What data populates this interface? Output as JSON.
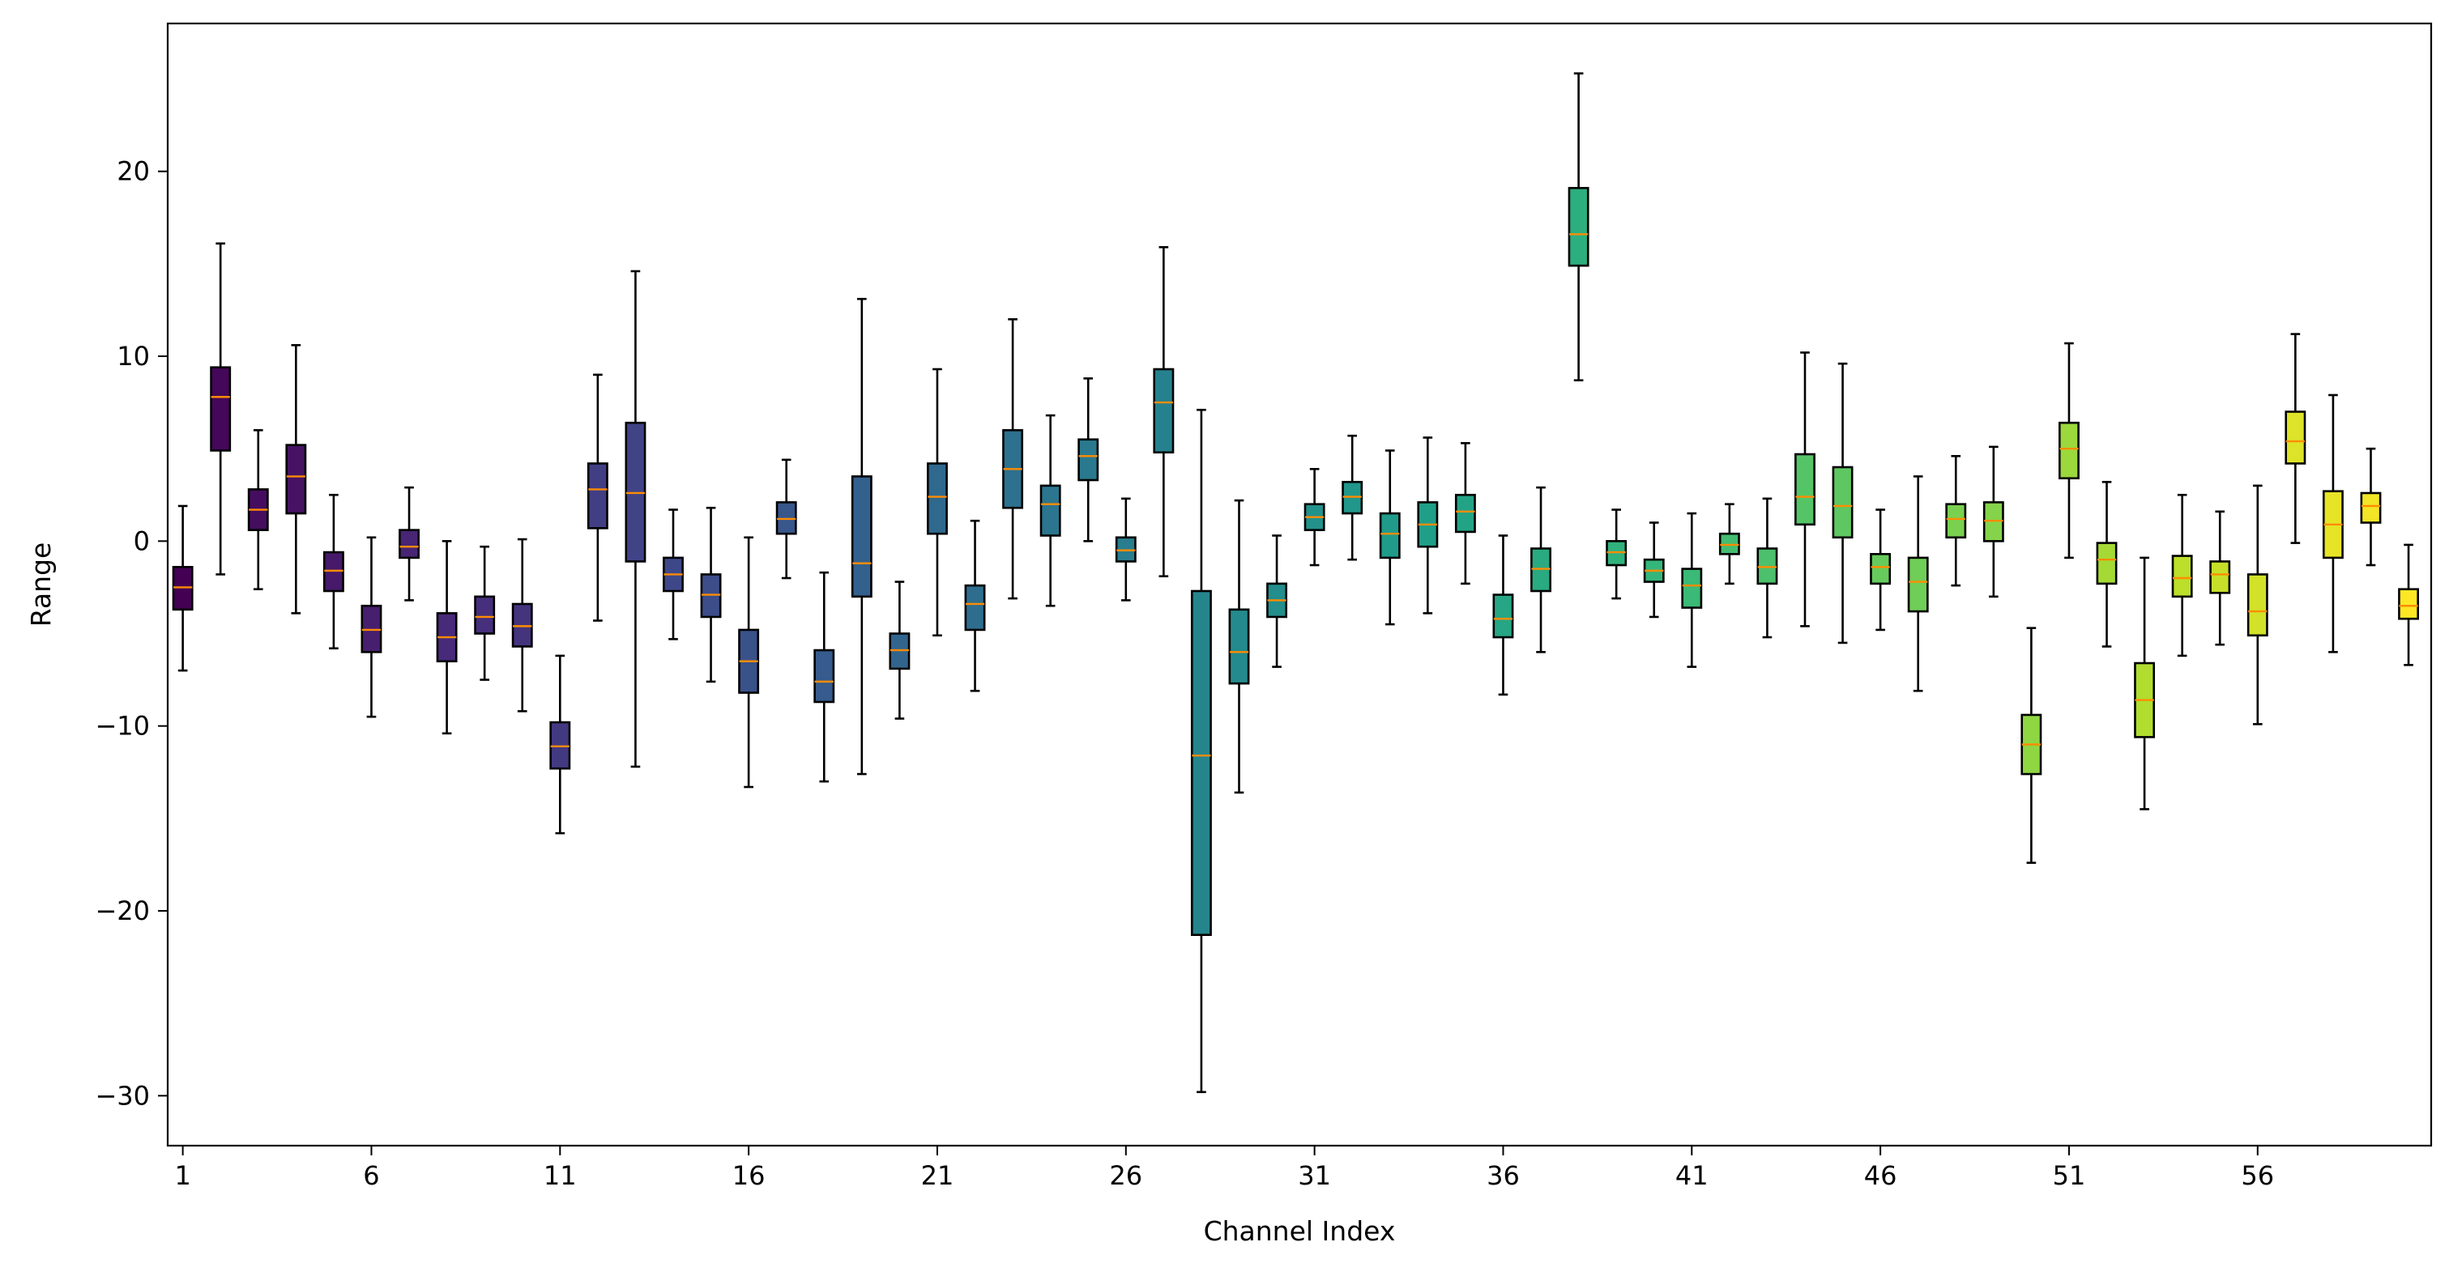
{
  "chart_data": {
    "type": "boxplot",
    "title": "",
    "xlabel": "Channel Index",
    "ylabel": "Range",
    "ylim": [
      -32.7,
      28.0
    ],
    "y_ticks": [
      20,
      10,
      0,
      -10,
      -20,
      -30
    ],
    "x_ticks": [
      1,
      6,
      11,
      16,
      21,
      26,
      31,
      36,
      41,
      46,
      51,
      56
    ],
    "colormap": "viridis",
    "median_color": "#ff8c00",
    "channels": [
      {
        "x": 1,
        "whislo": -7.0,
        "q1": -3.7,
        "med": -2.5,
        "q3": -1.4,
        "whishi": 1.9
      },
      {
        "x": 2,
        "whislo": -1.8,
        "q1": 4.9,
        "med": 7.8,
        "q3": 9.4,
        "whishi": 16.1
      },
      {
        "x": 3,
        "whislo": -2.6,
        "q1": 0.6,
        "med": 1.7,
        "q3": 2.8,
        "whishi": 6.0
      },
      {
        "x": 4,
        "whislo": -3.9,
        "q1": 1.5,
        "med": 3.5,
        "q3": 5.2,
        "whishi": 10.6
      },
      {
        "x": 5,
        "whislo": -5.8,
        "q1": -2.7,
        "med": -1.6,
        "q3": -0.6,
        "whishi": 2.5
      },
      {
        "x": 6,
        "whislo": -9.5,
        "q1": -6.0,
        "med": -4.8,
        "q3": -3.5,
        "whishi": 0.2
      },
      {
        "x": 7,
        "whislo": -3.2,
        "q1": -0.9,
        "med": -0.3,
        "q3": 0.6,
        "whishi": 2.9
      },
      {
        "x": 8,
        "whislo": -10.4,
        "q1": -6.5,
        "med": -5.2,
        "q3": -3.9,
        "whishi": 0.0
      },
      {
        "x": 9,
        "whislo": -7.5,
        "q1": -5.0,
        "med": -4.1,
        "q3": -3.0,
        "whishi": -0.3
      },
      {
        "x": 10,
        "whislo": -9.2,
        "q1": -5.7,
        "med": -4.6,
        "q3": -3.4,
        "whishi": 0.1
      },
      {
        "x": 11,
        "whislo": -15.8,
        "q1": -12.3,
        "med": -11.1,
        "q3": -9.8,
        "whishi": -6.2
      },
      {
        "x": 12,
        "whislo": -4.3,
        "q1": 0.7,
        "med": 2.8,
        "q3": 4.2,
        "whishi": 9.0
      },
      {
        "x": 13,
        "whislo": -12.2,
        "q1": -1.1,
        "med": 2.6,
        "q3": 6.4,
        "whishi": 14.6
      },
      {
        "x": 14,
        "whislo": -5.3,
        "q1": -2.7,
        "med": -1.8,
        "q3": -0.9,
        "whishi": 1.7
      },
      {
        "x": 15,
        "whislo": -7.6,
        "q1": -4.1,
        "med": -2.9,
        "q3": -1.8,
        "whishi": 1.8
      },
      {
        "x": 16,
        "whislo": -13.3,
        "q1": -8.2,
        "med": -6.5,
        "q3": -4.8,
        "whishi": 0.2
      },
      {
        "x": 17,
        "whislo": -2.0,
        "q1": 0.4,
        "med": 1.2,
        "q3": 2.1,
        "whishi": 4.4
      },
      {
        "x": 18,
        "whislo": -13.0,
        "q1": -8.7,
        "med": -7.6,
        "q3": -5.9,
        "whishi": -1.7
      },
      {
        "x": 19,
        "whislo": -12.6,
        "q1": -3.0,
        "med": -1.2,
        "q3": 3.5,
        "whishi": 13.1
      },
      {
        "x": 20,
        "whislo": -9.6,
        "q1": -6.9,
        "med": -5.9,
        "q3": -5.0,
        "whishi": -2.2
      },
      {
        "x": 21,
        "whislo": -5.1,
        "q1": 0.4,
        "med": 2.4,
        "q3": 4.2,
        "whishi": 9.3
      },
      {
        "x": 22,
        "whislo": -8.1,
        "q1": -4.8,
        "med": -3.4,
        "q3": -2.4,
        "whishi": 1.1
      },
      {
        "x": 23,
        "whislo": -3.1,
        "q1": 1.8,
        "med": 3.9,
        "q3": 6.0,
        "whishi": 12.0
      },
      {
        "x": 24,
        "whislo": -3.5,
        "q1": 0.3,
        "med": 2.0,
        "q3": 3.0,
        "whishi": 6.8
      },
      {
        "x": 25,
        "whislo": 0.0,
        "q1": 3.3,
        "med": 4.6,
        "q3": 5.5,
        "whishi": 8.8
      },
      {
        "x": 26,
        "whislo": -3.2,
        "q1": -1.1,
        "med": -0.5,
        "q3": 0.2,
        "whishi": 2.3
      },
      {
        "x": 27,
        "whislo": -1.9,
        "q1": 4.8,
        "med": 7.5,
        "q3": 9.3,
        "whishi": 15.9
      },
      {
        "x": 28,
        "whislo": -29.8,
        "q1": -21.3,
        "med": -11.6,
        "q3": -2.7,
        "whishi": 7.1
      },
      {
        "x": 29,
        "whislo": -13.6,
        "q1": -7.7,
        "med": -6.0,
        "q3": -3.7,
        "whishi": 2.2
      },
      {
        "x": 30,
        "whislo": -6.8,
        "q1": -4.1,
        "med": -3.2,
        "q3": -2.3,
        "whishi": 0.3
      },
      {
        "x": 31,
        "whislo": -1.3,
        "q1": 0.6,
        "med": 1.3,
        "q3": 2.0,
        "whishi": 3.9
      },
      {
        "x": 32,
        "whislo": -1.0,
        "q1": 1.5,
        "med": 2.4,
        "q3": 3.2,
        "whishi": 5.7
      },
      {
        "x": 33,
        "whislo": -4.5,
        "q1": -0.9,
        "med": 0.4,
        "q3": 1.5,
        "whishi": 4.9
      },
      {
        "x": 34,
        "whislo": -3.9,
        "q1": -0.3,
        "med": 0.9,
        "q3": 2.1,
        "whishi": 5.6
      },
      {
        "x": 35,
        "whislo": -2.3,
        "q1": 0.5,
        "med": 1.6,
        "q3": 2.5,
        "whishi": 5.3
      },
      {
        "x": 36,
        "whislo": -8.3,
        "q1": -5.2,
        "med": -4.2,
        "q3": -2.9,
        "whishi": 0.3
      },
      {
        "x": 37,
        "whislo": -6.0,
        "q1": -2.7,
        "med": -1.5,
        "q3": -0.4,
        "whishi": 2.9
      },
      {
        "x": 38,
        "whislo": 8.7,
        "q1": 14.9,
        "med": 16.6,
        "q3": 19.1,
        "whishi": 25.3
      },
      {
        "x": 39,
        "whislo": -3.1,
        "q1": -1.3,
        "med": -0.6,
        "q3": 0.0,
        "whishi": 1.7
      },
      {
        "x": 40,
        "whislo": -4.1,
        "q1": -2.2,
        "med": -1.6,
        "q3": -1.0,
        "whishi": 1.0
      },
      {
        "x": 41,
        "whislo": -6.8,
        "q1": -3.6,
        "med": -2.4,
        "q3": -1.5,
        "whishi": 1.5
      },
      {
        "x": 42,
        "whislo": -2.3,
        "q1": -0.7,
        "med": -0.2,
        "q3": 0.4,
        "whishi": 2.0
      },
      {
        "x": 43,
        "whislo": -5.2,
        "q1": -2.3,
        "med": -1.4,
        "q3": -0.4,
        "whishi": 2.3
      },
      {
        "x": 44,
        "whislo": -4.6,
        "q1": 0.9,
        "med": 2.4,
        "q3": 4.7,
        "whishi": 10.2
      },
      {
        "x": 45,
        "whislo": -5.5,
        "q1": 0.2,
        "med": 1.9,
        "q3": 4.0,
        "whishi": 9.6
      },
      {
        "x": 46,
        "whislo": -4.8,
        "q1": -2.3,
        "med": -1.4,
        "q3": -0.7,
        "whishi": 1.7
      },
      {
        "x": 47,
        "whislo": -8.1,
        "q1": -3.8,
        "med": -2.2,
        "q3": -0.9,
        "whishi": 3.5
      },
      {
        "x": 48,
        "whislo": -2.4,
        "q1": 0.2,
        "med": 1.2,
        "q3": 2.0,
        "whishi": 4.6
      },
      {
        "x": 49,
        "whislo": -3.0,
        "q1": 0.0,
        "med": 1.1,
        "q3": 2.1,
        "whishi": 5.1
      },
      {
        "x": 50,
        "whislo": -17.4,
        "q1": -12.6,
        "med": -11.0,
        "q3": -9.4,
        "whishi": -4.7
      },
      {
        "x": 51,
        "whislo": -0.9,
        "q1": 3.4,
        "med": 5.0,
        "q3": 6.4,
        "whishi": 10.7
      },
      {
        "x": 52,
        "whislo": -5.7,
        "q1": -2.3,
        "med": -1.0,
        "q3": -0.1,
        "whishi": 3.2
      },
      {
        "x": 53,
        "whislo": -14.5,
        "q1": -10.6,
        "med": -8.6,
        "q3": -6.6,
        "whishi": -0.9
      },
      {
        "x": 54,
        "whislo": -6.2,
        "q1": -3.0,
        "med": -2.0,
        "q3": -0.8,
        "whishi": 2.5
      },
      {
        "x": 55,
        "whislo": -5.6,
        "q1": -2.8,
        "med": -1.8,
        "q3": -1.1,
        "whishi": 1.6
      },
      {
        "x": 56,
        "whislo": -9.9,
        "q1": -5.1,
        "med": -3.8,
        "q3": -1.8,
        "whishi": 3.0
      },
      {
        "x": 57,
        "whislo": -0.1,
        "q1": 4.2,
        "med": 5.4,
        "q3": 7.0,
        "whishi": 11.2
      },
      {
        "x": 58,
        "whislo": -6.0,
        "q1": -0.9,
        "med": 0.9,
        "q3": 2.7,
        "whishi": 7.9
      },
      {
        "x": 59,
        "whislo": -1.3,
        "q1": 1.0,
        "med": 1.9,
        "q3": 2.6,
        "whishi": 5.0
      },
      {
        "x": 60,
        "whislo": -6.7,
        "q1": -4.2,
        "med": -3.5,
        "q3": -2.6,
        "whishi": -0.2
      }
    ]
  }
}
